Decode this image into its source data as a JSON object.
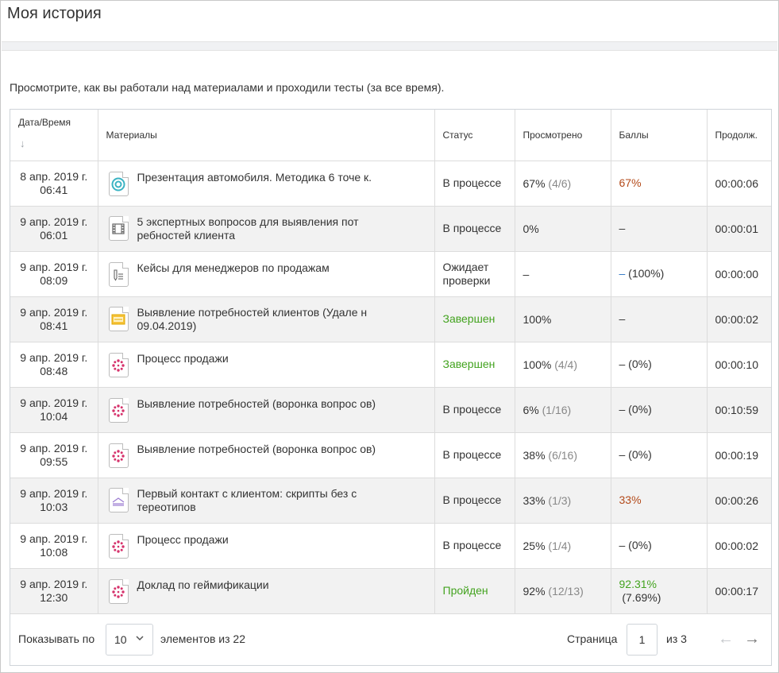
{
  "page": {
    "title": "Моя история",
    "intro": "Просмотрите, как вы работали над материалами и проходили тесты (за все время)."
  },
  "table": {
    "headers": {
      "date": "Дата/Время",
      "sort_arrow": "↓",
      "materials": "Материалы",
      "status": "Статус",
      "viewed": "Просмотрено",
      "score": "Баллы",
      "duration": "Продолж."
    },
    "rows": [
      {
        "date1": "8 апр. 2019 г.",
        "date2": "06:41",
        "icon": "target-icon",
        "material": "Презентация автомобиля. Методика 6 точе к.",
        "status": "В процессе",
        "viewed": "67%",
        "viewed_detail": " (4/6)",
        "score": "67%",
        "score_detail": "",
        "duration": "00:00:06"
      },
      {
        "date1": "9 апр. 2019 г.",
        "date2": "06:01",
        "icon": "film-icon",
        "material": "5 экспертных вопросов для выявления пот ребностей клиента",
        "status": "В процессе",
        "viewed": "0%",
        "viewed_detail": "",
        "score": "–",
        "score_detail": "",
        "duration": "00:00:01"
      },
      {
        "date1": "9 апр. 2019 г.",
        "date2": "08:09",
        "icon": "assignment-icon",
        "material": "Кейсы для менеджеров по продажам",
        "status": "Ожидает проверки",
        "viewed": "–",
        "viewed_detail": "",
        "score": "–",
        "score_detail": " (100%)",
        "duration": "00:00:00"
      },
      {
        "date1": "9 апр. 2019 г.",
        "date2": "08:41",
        "icon": "slides-icon",
        "material": "Выявление потребностей клиентов (Удале н 09.04.2019)",
        "status": "Завершен",
        "viewed": "100%",
        "viewed_detail": "",
        "score": "–",
        "score_detail": "",
        "duration": "00:00:02"
      },
      {
        "date1": "9 апр. 2019 г.",
        "date2": "08:48",
        "icon": "ispring-icon",
        "material": "Процесс продажи",
        "status": "Завершен",
        "viewed": "100%",
        "viewed_detail": " (4/4)",
        "score": "–",
        "score_detail": " (0%)",
        "duration": "00:00:10"
      },
      {
        "date1": "9 апр. 2019 г.",
        "date2": "10:04",
        "icon": "ispring-icon",
        "material": "Выявление потребностей (воронка вопрос ов)",
        "status": "В процессе",
        "viewed": "6%",
        "viewed_detail": " (1/16)",
        "score": "–",
        "score_detail": " (0%)",
        "duration": "00:10:59"
      },
      {
        "date1": "9 апр. 2019 г.",
        "date2": "09:55",
        "icon": "ispring-icon",
        "material": "Выявление потребностей (воронка вопрос ов)",
        "status": "В процессе",
        "viewed": "38%",
        "viewed_detail": " (6/16)",
        "score": "–",
        "score_detail": " (0%)",
        "duration": "00:00:19"
      },
      {
        "date1": "9 апр. 2019 г.",
        "date2": "10:03",
        "icon": "book-icon",
        "material": "Первый контакт с клиентом: скрипты без с тереотипов",
        "status": "В процессе",
        "viewed": "33%",
        "viewed_detail": " (1/3)",
        "score": "33%",
        "score_detail": "",
        "duration": "00:00:26"
      },
      {
        "date1": "9 апр. 2019 г.",
        "date2": "10:08",
        "icon": "ispring-icon",
        "material": "Процесс продажи",
        "status": "В процессе",
        "viewed": "25%",
        "viewed_detail": " (1/4)",
        "score": "–",
        "score_detail": " (0%)",
        "duration": "00:00:02"
      },
      {
        "date1": "9 апр. 2019 г.",
        "date2": "12:30",
        "icon": "ispring-icon",
        "material": "Доклад по геймификации",
        "status": "Пройден",
        "viewed": "92%",
        "viewed_detail": " (12/13)",
        "score": "92.31%",
        "score_detail": "(7.69%)",
        "duration": "00:00:17"
      }
    ]
  },
  "colors": {
    "status_done": "#43a31f",
    "score_partial": "#b34a1a",
    "score_pending": "#2d75c5",
    "muted": "#888888"
  },
  "footer": {
    "show_label": "Показывать по",
    "per_page": "10",
    "of_items": "элементов из 22",
    "page_label": "Страница",
    "page_value": "1",
    "of_pages": "из 3",
    "prev_arrow": "←",
    "next_arrow": "→"
  }
}
